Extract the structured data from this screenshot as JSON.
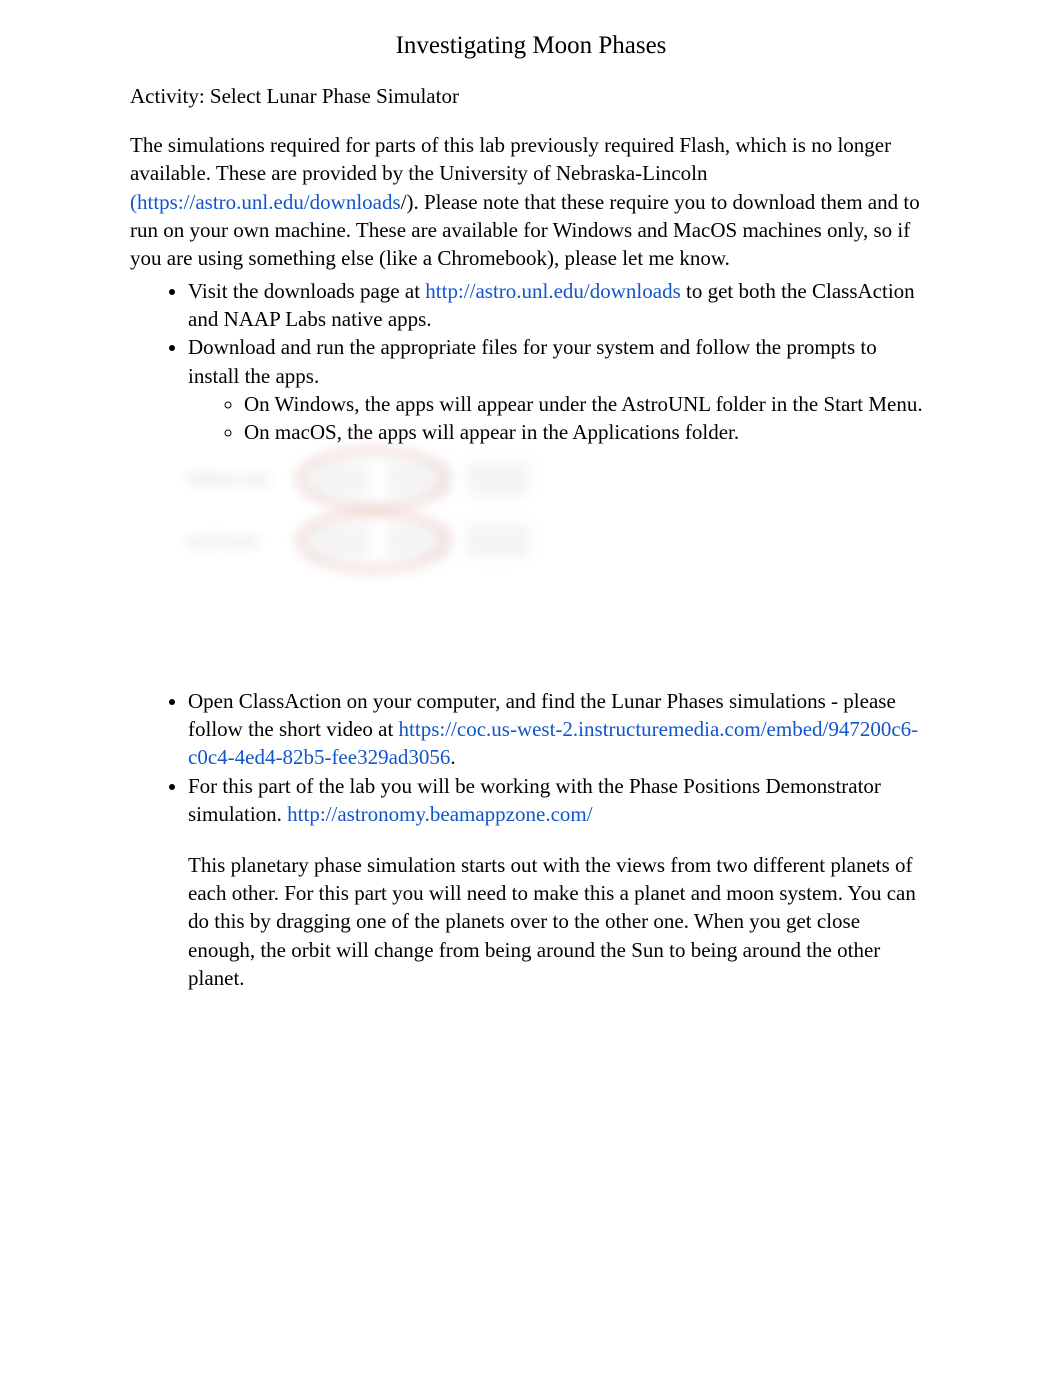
{
  "title": "Investigating Moon Phases",
  "activity": "Activity: Select Lunar Phase Simulator",
  "intro_part1": "The simulations required for parts of this lab previously required Flash, which is no longer available. These are provided by the University of Nebraska-Lincoln ",
  "intro_link1_text": "(https://astro.unl.edu/downloads",
  "intro_link1_url": "https://astro.unl.edu/downloads",
  "intro_part2": "/). Please note that these require you to download them and to run on your own machine. These are available for Windows and MacOS machines only, so if you are using something else (like a Chromebook), please let me know.",
  "bullets": {
    "b1_part1": "Visit the downloads page at ",
    "b1_link_text": "http://astro.unl.edu/downloads",
    "b1_part2": " to get both the ClassAction and NAAP Labs   native apps.",
    "b2": "Download and run the appropriate files for your system and follow the prompts to install the apps.",
    "b2_sub1": "On Windows, the apps will appear under the AstroUNL folder in the Start Menu.",
    "b2_sub2": "On macOS, the apps will appear in the Applications folder.",
    "b3_part1": "Open ClassAction on your computer, and find the Lunar Phases simulations - please follow the short video at ",
    "b3_link_text": "https://coc.us-west-2.instructuremedia.com/embed/947200c6-c0c4-4ed4-82b5-fee329ad3056",
    "b3_part2": ".",
    "b4_part1": "For this part of the lab you will be working with the Phase Positions Demonstrator   simulation. ",
    "b4_link_text": "http://astronomy.beamappzone.com/",
    "b4_para": "This planetary phase simulation starts out with the views from two different planets of each other.  For this part you will need to make this a planet and moon system. You can do this by dragging one of the planets over to the other one. When you get close enough, the orbit will change from being around the Sun to being around the other planet."
  },
  "colors": {
    "text": "#000000",
    "link": "#1155cc",
    "background": "#ffffff"
  }
}
